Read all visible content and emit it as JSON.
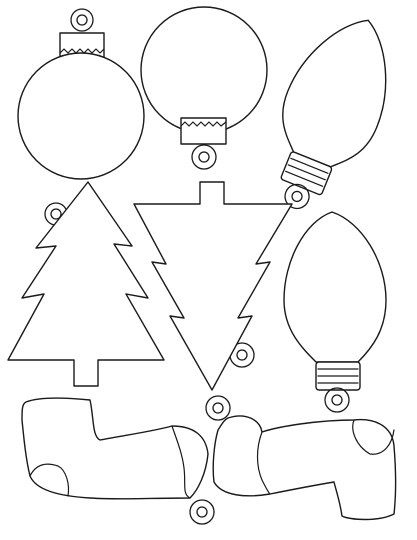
{
  "sheet": {
    "background": "#ffffff",
    "line_color": "#1a1a1a",
    "shapes": [
      "ornament-round-icon",
      "ornament-round-inverted-icon",
      "light-bulb-icon",
      "christmas-tree-icon",
      "christmas-tree-inverted-icon",
      "light-bulb-upright-icon",
      "stocking-icon",
      "stocking-inverted-icon"
    ]
  }
}
